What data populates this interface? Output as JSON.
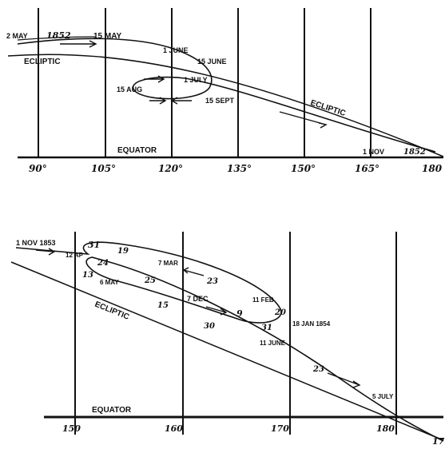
{
  "top_panel": {
    "ticks": [
      "90°",
      "105°",
      "120°",
      "135°",
      "150°",
      "165°",
      "180"
    ],
    "equator": "EQUATOR",
    "ecliptic_left": "ECLIPTIC",
    "ecliptic_right": "ECLIPTIC",
    "dates": {
      "may2": "2 MAY",
      "year_start": "1852",
      "may15": "15 MAY",
      "june1": "1 JUNE",
      "june15": "15 JUNE",
      "july1": "1 JULY",
      "aug15": "15 AUG",
      "sept15": "15 SEPT",
      "nov1": "1 NOV",
      "year_end": "1852"
    }
  },
  "bottom_panel": {
    "ticks": [
      "150",
      "160",
      "170",
      "180",
      "17"
    ],
    "equator": "EQUATOR",
    "ecliptic": "ECLIPTIC",
    "dates": {
      "nov1": "1 NOV 1853",
      "apr12": "12 AP",
      "d31": "31",
      "d19": "19",
      "d24": "24",
      "d13": "13",
      "may6": "6 MAY",
      "d25": "25",
      "mar7": "7 MAR",
      "d23": "23",
      "feb11": "11 FEB",
      "dec7": "7 DEC",
      "d9": "9",
      "d20": "20",
      "jan18": "18 JAN 1854",
      "d15": "15",
      "d30": "30",
      "d31b": "31",
      "june11": "11 JUNE",
      "d23b": "23",
      "july5": "5 JULY"
    }
  }
}
